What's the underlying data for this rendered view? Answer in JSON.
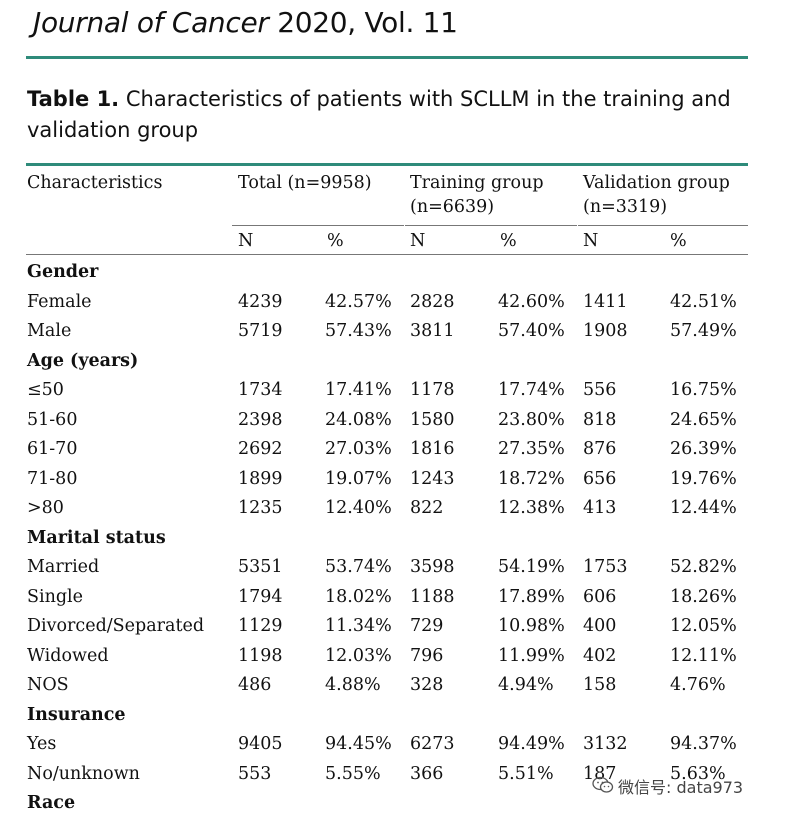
{
  "journal": {
    "name": "Journal of Cancer",
    "year_vol": "2020, Vol. 11"
  },
  "caption": {
    "label": "Table 1.",
    "text": "Characteristics of patients with SCLLM in the training and validation group"
  },
  "header": {
    "characteristics": "Characteristics",
    "total": "Total (n=9958)",
    "training": "Training group (n=6639)",
    "validation": "Validation group (n=3319)",
    "n": "N",
    "pct": "%"
  },
  "rows": [
    {
      "type": "section",
      "label": "Gender"
    },
    {
      "type": "data",
      "label": "Female",
      "values": [
        "4239",
        "42.57%",
        "2828",
        "42.60%",
        "1411",
        "42.51%"
      ]
    },
    {
      "type": "data",
      "label": "Male",
      "values": [
        "5719",
        "57.43%",
        "3811",
        "57.40%",
        "1908",
        "57.49%"
      ]
    },
    {
      "type": "section",
      "label": "Age (years)"
    },
    {
      "type": "data",
      "label": "≤50",
      "values": [
        "1734",
        "17.41%",
        "1178",
        "17.74%",
        "556",
        "16.75%"
      ]
    },
    {
      "type": "data",
      "label": "51-60",
      "values": [
        "2398",
        "24.08%",
        "1580",
        "23.80%",
        "818",
        "24.65%"
      ]
    },
    {
      "type": "data",
      "label": "61-70",
      "values": [
        "2692",
        "27.03%",
        "1816",
        "27.35%",
        "876",
        "26.39%"
      ]
    },
    {
      "type": "data",
      "label": "71-80",
      "values": [
        "1899",
        "19.07%",
        "1243",
        "18.72%",
        "656",
        "19.76%"
      ]
    },
    {
      "type": "data",
      "label": ">80",
      "values": [
        "1235",
        "12.40%",
        "822",
        "12.38%",
        "413",
        "12.44%"
      ]
    },
    {
      "type": "section",
      "label": "Marital status"
    },
    {
      "type": "data",
      "label": "Married",
      "values": [
        "5351",
        "53.74%",
        "3598",
        "54.19%",
        "1753",
        "52.82%"
      ]
    },
    {
      "type": "data",
      "label": "Single",
      "values": [
        "1794",
        "18.02%",
        "1188",
        "17.89%",
        "606",
        "18.26%"
      ]
    },
    {
      "type": "data",
      "label": "Divorced/Separated",
      "values": [
        "1129",
        "11.34%",
        "729",
        "10.98%",
        "400",
        "12.05%"
      ]
    },
    {
      "type": "data",
      "label": "Widowed",
      "values": [
        "1198",
        "12.03%",
        "796",
        "11.99%",
        "402",
        "12.11%"
      ]
    },
    {
      "type": "data",
      "label": "NOS",
      "values": [
        "486",
        "4.88%",
        "328",
        "4.94%",
        "158",
        "4.76%"
      ]
    },
    {
      "type": "section",
      "label": "Insurance"
    },
    {
      "type": "data",
      "label": "Yes",
      "values": [
        "9405",
        "94.45%",
        "6273",
        "94.49%",
        "3132",
        "94.37%"
      ]
    },
    {
      "type": "data",
      "label": "No/unknown",
      "values": [
        "553",
        "5.55%",
        "366",
        "5.51%",
        "187",
        "5.63%"
      ]
    },
    {
      "type": "section",
      "label": "Race"
    }
  ],
  "watermark": {
    "text": "微信号: data973",
    "icon": "wechat-icon"
  },
  "colors": {
    "accent": "#2e8b7a"
  }
}
